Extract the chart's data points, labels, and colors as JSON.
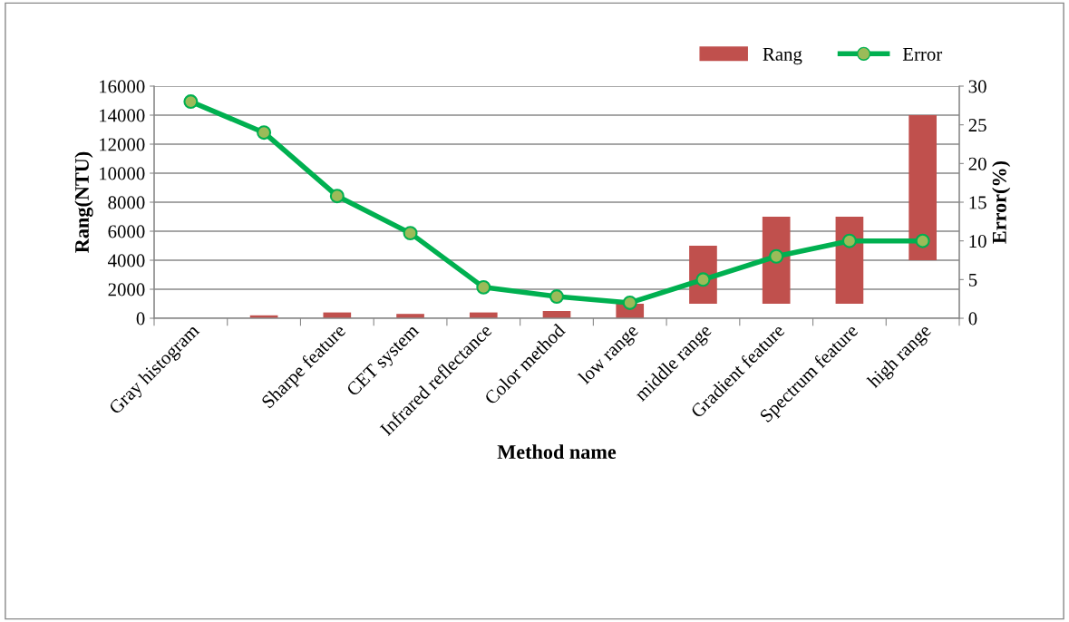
{
  "chart_data": {
    "type": "bar",
    "xlabel": "Method name",
    "ylabel": "Rang(NTU)",
    "y2label": "Error(%)",
    "categories": [
      "Gray histogram",
      null,
      "Sharpe feature",
      "CET system",
      "Infrared reflectance",
      "Color method",
      "low range",
      "middle range",
      "Gradient feature",
      "Spectrum feature",
      "high range"
    ],
    "series": [
      {
        "name": "Rang",
        "color": "#c0504d",
        "values": [
          null,
          200,
          400,
          300,
          400,
          500,
          1000,
          4000,
          6000,
          6000,
          10000
        ],
        "base": [
          null,
          0,
          0,
          0,
          0,
          0,
          0,
          1000,
          1000,
          1000,
          4000
        ]
      },
      {
        "name": "Error",
        "type": "line",
        "axis": "y2",
        "color": "#00b050",
        "marker": "circle",
        "values": [
          28,
          24,
          15.8,
          11,
          4,
          2.8,
          2,
          5,
          8,
          10,
          10
        ]
      }
    ],
    "ylim": [
      0,
      16000
    ],
    "yticks": [
      0,
      2000,
      4000,
      6000,
      8000,
      10000,
      12000,
      14000,
      16000
    ],
    "y2lim": [
      0,
      30
    ],
    "y2ticks": [
      0,
      5,
      10,
      15,
      20,
      25,
      30
    ],
    "grid": "y",
    "legend": "top right"
  }
}
